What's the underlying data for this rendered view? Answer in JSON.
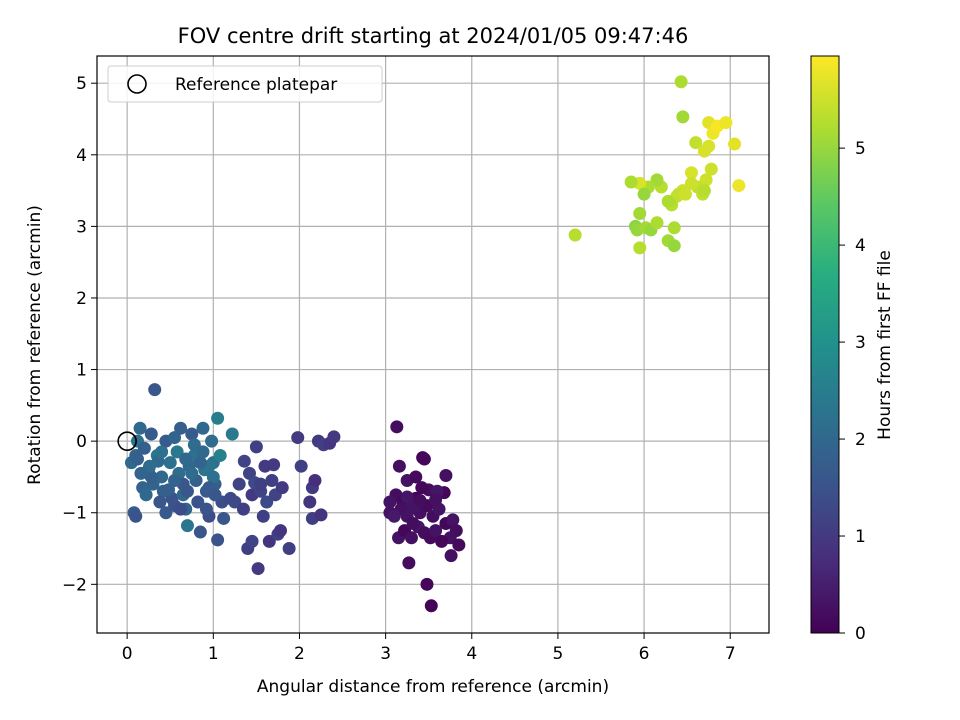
{
  "chart_data": {
    "type": "scatter",
    "title": "FOV centre drift starting at 2024/01/05 09:47:46",
    "xlabel": "Angular distance from reference (arcmin)",
    "ylabel": "Rotation from reference (arcmin)",
    "xlim": [
      -0.35,
      7.45
    ],
    "ylim": [
      -2.68,
      5.38
    ],
    "xticks": [
      0,
      1,
      2,
      3,
      4,
      5,
      6,
      7
    ],
    "yticks": [
      -2,
      -1,
      0,
      1,
      2,
      3,
      4,
      5
    ],
    "grid": true,
    "legend": {
      "placement": "top-left",
      "entries": [
        {
          "label": "Reference platepar",
          "marker": "open-circle"
        }
      ]
    },
    "reference_point": {
      "x": 0,
      "y": 0
    },
    "colorbar": {
      "label": "Hours from first FF file",
      "colormap": "viridis",
      "range": [
        0,
        5.95
      ],
      "ticks": [
        0,
        1,
        2,
        3,
        4,
        5
      ]
    },
    "point_series": {
      "x_unit": "arcmin",
      "y_unit": "arcmin",
      "color_unit": "hours",
      "points": [
        [
          3.43,
          -0.23,
          0.05
        ],
        [
          3.45,
          -0.25,
          0.1
        ],
        [
          3.13,
          0.2,
          0.2
        ],
        [
          3.16,
          -0.35,
          0.25
        ],
        [
          3.25,
          -0.55,
          0.3
        ],
        [
          3.35,
          -0.5,
          0.15
        ],
        [
          3.5,
          -0.68,
          0.2
        ],
        [
          3.7,
          -0.48,
          0.25
        ],
        [
          3.68,
          -0.72,
          0.1
        ],
        [
          3.05,
          -1.0,
          0.3
        ],
        [
          3.12,
          -0.75,
          0.2
        ],
        [
          3.2,
          -0.85,
          0.15
        ],
        [
          3.28,
          -0.95,
          0.35
        ],
        [
          3.35,
          -0.8,
          0.05
        ],
        [
          3.4,
          -1.0,
          0.25
        ],
        [
          3.48,
          -0.9,
          0.15
        ],
        [
          3.55,
          -1.05,
          0.2
        ],
        [
          3.62,
          -0.95,
          0.3
        ],
        [
          3.7,
          -1.15,
          0.1
        ],
        [
          3.78,
          -1.1,
          0.3
        ],
        [
          3.82,
          -1.25,
          0.2
        ],
        [
          3.75,
          -1.35,
          0.25
        ],
        [
          3.85,
          -1.45,
          0.15
        ],
        [
          3.15,
          -1.35,
          0.3
        ],
        [
          3.22,
          -1.25,
          0.1
        ],
        [
          3.3,
          -1.35,
          0.25
        ],
        [
          3.38,
          -1.2,
          0.35
        ],
        [
          3.45,
          -1.28,
          0.2
        ],
        [
          3.52,
          -1.35,
          0.15
        ],
        [
          3.58,
          -1.25,
          0.3
        ],
        [
          3.65,
          -1.4,
          0.1
        ],
        [
          3.76,
          -1.6,
          0.25
        ],
        [
          3.27,
          -1.7,
          0.2
        ],
        [
          3.48,
          -2.0,
          0.1
        ],
        [
          3.53,
          -2.3,
          0.05
        ],
        [
          3.18,
          -0.95,
          0.25
        ],
        [
          3.25,
          -1.05,
          0.3
        ],
        [
          3.32,
          -1.15,
          0.2
        ],
        [
          3.42,
          -0.65,
          0.1
        ],
        [
          3.6,
          -0.7,
          0.35
        ],
        [
          3.1,
          -1.05,
          0.4
        ],
        [
          3.33,
          -0.9,
          0.3
        ],
        [
          3.4,
          -0.83,
          0.2
        ],
        [
          3.58,
          -0.82,
          0.25
        ],
        [
          3.05,
          -0.85,
          0.3
        ],
        [
          3.25,
          -0.78,
          0.35
        ],
        [
          0.05,
          -0.3,
          2.0
        ],
        [
          0.1,
          -0.2,
          1.9
        ],
        [
          0.12,
          0.0,
          2.2
        ],
        [
          0.15,
          0.18,
          2.0
        ],
        [
          0.2,
          -0.1,
          1.8
        ],
        [
          0.25,
          -0.4,
          2.1
        ],
        [
          0.28,
          0.1,
          1.7
        ],
        [
          0.3,
          -0.6,
          1.9
        ],
        [
          0.32,
          0.72,
          1.6
        ],
        [
          0.35,
          -0.2,
          2.3
        ],
        [
          0.4,
          -0.5,
          2.0
        ],
        [
          0.42,
          -0.7,
          1.8
        ],
        [
          0.45,
          0.0,
          1.7
        ],
        [
          0.5,
          -0.3,
          2.2
        ],
        [
          0.52,
          -0.8,
          1.5
        ],
        [
          0.55,
          0.05,
          1.9
        ],
        [
          0.58,
          -0.15,
          2.4
        ],
        [
          0.6,
          -0.45,
          2.1
        ],
        [
          0.62,
          0.18,
          1.8
        ],
        [
          0.65,
          -0.6,
          1.6
        ],
        [
          0.68,
          -0.95,
          1.9
        ],
        [
          0.7,
          -1.18,
          2.3
        ],
        [
          0.72,
          -0.35,
          2.0
        ],
        [
          0.75,
          0.1,
          1.7
        ],
        [
          0.78,
          -0.2,
          2.2
        ],
        [
          0.8,
          -0.55,
          1.8
        ],
        [
          0.82,
          -0.85,
          1.5
        ],
        [
          0.85,
          -1.27,
          1.6
        ],
        [
          0.88,
          0.18,
          2.0
        ],
        [
          0.9,
          -0.4,
          2.3
        ],
        [
          0.92,
          -0.7,
          1.7
        ],
        [
          0.95,
          -1.05,
          1.4
        ],
        [
          0.98,
          0.0,
          2.1
        ],
        [
          1.0,
          -0.3,
          2.2
        ],
        [
          1.02,
          -0.6,
          1.8
        ],
        [
          1.05,
          0.32,
          2.5
        ],
        [
          1.05,
          -1.38,
          1.5
        ],
        [
          1.08,
          -0.2,
          2.6
        ],
        [
          1.1,
          -0.85,
          1.4
        ],
        [
          1.12,
          -1.08,
          1.6
        ],
        [
          1.22,
          0.1,
          2.4
        ],
        [
          1.2,
          -0.8,
          1.3
        ],
        [
          0.08,
          -1.0,
          1.7
        ],
        [
          0.1,
          -1.05,
          1.5
        ],
        [
          0.18,
          -0.65,
          1.9
        ],
        [
          0.22,
          -0.75,
          2.0
        ],
        [
          0.28,
          -0.5,
          1.8
        ],
        [
          0.38,
          -0.85,
          1.6
        ],
        [
          0.45,
          -1.0,
          1.7
        ],
        [
          0.55,
          -0.9,
          1.5
        ],
        [
          0.65,
          -0.75,
          2.0
        ],
        [
          0.75,
          -0.45,
          2.1
        ],
        [
          0.95,
          -0.35,
          2.3
        ],
        [
          1.0,
          -0.5,
          2.2
        ],
        [
          0.85,
          -0.3,
          1.9
        ],
        [
          0.7,
          -0.7,
          1.6
        ],
        [
          0.62,
          -0.95,
          1.4
        ],
        [
          0.48,
          -0.68,
          1.8
        ],
        [
          0.36,
          -0.28,
          2.0
        ],
        [
          0.26,
          -0.35,
          2.1
        ],
        [
          0.16,
          -0.45,
          1.9
        ],
        [
          0.12,
          -0.25,
          1.8
        ],
        [
          0.4,
          -0.15,
          2.2
        ],
        [
          0.55,
          -0.55,
          1.9
        ],
        [
          0.68,
          -0.25,
          2.0
        ],
        [
          0.78,
          -0.05,
          2.1
        ],
        [
          0.88,
          -0.15,
          2.0
        ],
        [
          0.95,
          -0.65,
          1.7
        ],
        [
          1.02,
          -0.75,
          1.6
        ],
        [
          0.92,
          -0.95,
          1.5
        ],
        [
          1.25,
          -0.85,
          1.3
        ],
        [
          1.3,
          -0.6,
          1.2
        ],
        [
          1.35,
          -0.95,
          1.1
        ],
        [
          1.36,
          -0.28,
          1.2
        ],
        [
          1.4,
          -1.5,
          1.1
        ],
        [
          1.42,
          -0.45,
          1.2
        ],
        [
          1.45,
          -0.75,
          1.0
        ],
        [
          1.48,
          -0.58,
          1.3
        ],
        [
          1.5,
          -0.08,
          1.1
        ],
        [
          1.52,
          -1.78,
          1.0
        ],
        [
          1.55,
          -0.7,
          1.2
        ],
        [
          1.58,
          -1.05,
          1.1
        ],
        [
          1.6,
          -0.35,
          1.0
        ],
        [
          1.62,
          -0.85,
          1.3
        ],
        [
          1.65,
          -1.4,
          0.9
        ],
        [
          1.68,
          -0.55,
          1.1
        ],
        [
          1.7,
          -0.33,
          1.0
        ],
        [
          1.72,
          -0.75,
          1.2
        ],
        [
          1.75,
          -1.3,
          1.1
        ],
        [
          1.78,
          -1.25,
          0.9
        ],
        [
          1.8,
          -0.65,
          1.0
        ],
        [
          1.88,
          -1.5,
          1.1
        ],
        [
          1.98,
          0.05,
          1.0
        ],
        [
          2.02,
          -0.35,
          1.1
        ],
        [
          2.12,
          -0.85,
          0.9
        ],
        [
          2.15,
          -0.65,
          1.0
        ],
        [
          2.15,
          -1.08,
          1.1
        ],
        [
          2.18,
          -0.55,
          0.8
        ],
        [
          2.22,
          0.0,
          1.0
        ],
        [
          2.25,
          -1.03,
          0.9
        ],
        [
          2.28,
          -0.05,
          1.1
        ],
        [
          2.35,
          -0.03,
          0.9
        ],
        [
          2.4,
          0.06,
          1.0
        ],
        [
          1.45,
          -1.4,
          1.2
        ],
        [
          1.55,
          -0.6,
          1.1
        ],
        [
          6.43,
          5.02,
          5.2
        ],
        [
          6.45,
          4.53,
          5.1
        ],
        [
          6.6,
          4.17,
          5.4
        ],
        [
          6.7,
          4.05,
          5.6
        ],
        [
          6.75,
          4.45,
          5.7
        ],
        [
          6.8,
          4.3,
          5.8
        ],
        [
          6.85,
          4.4,
          5.9
        ],
        [
          6.95,
          4.45,
          5.8
        ],
        [
          7.05,
          4.15,
          5.7
        ],
        [
          7.1,
          3.57,
          5.8
        ],
        [
          6.75,
          4.12,
          5.6
        ],
        [
          6.78,
          3.8,
          5.5
        ],
        [
          6.72,
          3.65,
          5.5
        ],
        [
          6.68,
          3.45,
          5.4
        ],
        [
          6.55,
          3.75,
          5.6
        ],
        [
          6.45,
          3.5,
          5.5
        ],
        [
          6.38,
          3.42,
          5.4
        ],
        [
          6.32,
          3.3,
          5.3
        ],
        [
          6.28,
          3.35,
          5.2
        ],
        [
          6.2,
          3.55,
          5.3
        ],
        [
          6.15,
          3.65,
          5.1
        ],
        [
          6.05,
          3.55,
          5.2
        ],
        [
          5.95,
          3.6,
          5.6
        ],
        [
          5.85,
          3.62,
          5.2
        ],
        [
          6.0,
          3.45,
          5.0
        ],
        [
          5.95,
          3.18,
          5.1
        ],
        [
          5.9,
          3.0,
          4.9
        ],
        [
          5.92,
          2.95,
          5.0
        ],
        [
          6.02,
          2.98,
          5.1
        ],
        [
          6.08,
          2.95,
          5.0
        ],
        [
          6.15,
          3.05,
          5.2
        ],
        [
          6.28,
          2.8,
          5.1
        ],
        [
          6.35,
          2.73,
          5.0
        ],
        [
          5.95,
          2.7,
          5.3
        ],
        [
          5.2,
          2.88,
          5.3
        ],
        [
          6.35,
          2.98,
          5.2
        ],
        [
          6.4,
          3.45,
          5.4
        ],
        [
          6.48,
          3.45,
          5.5
        ],
        [
          6.62,
          3.55,
          5.4
        ],
        [
          6.7,
          3.5,
          5.3
        ],
        [
          6.55,
          3.6,
          5.5
        ]
      ]
    }
  }
}
